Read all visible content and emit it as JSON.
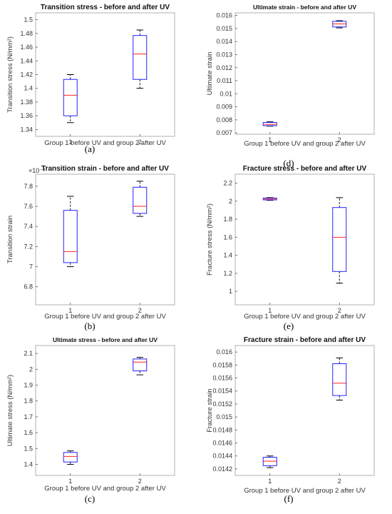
{
  "colors": {
    "box": "#2222ff",
    "median": "#ff2222",
    "whisker": "#000000",
    "axes": "#b0b0b0"
  },
  "chart_data": [
    {
      "type": "boxplot",
      "panel": "(a)",
      "title": "Transition stress - before and after UV",
      "xlabel": "Group 1 before UV and group 2 after UV",
      "ylabel": "Transition stress (N/mm²)",
      "ylim": [
        1.33,
        1.51
      ],
      "yticks": [
        1.34,
        1.36,
        1.38,
        1.4,
        1.42,
        1.44,
        1.46,
        1.48,
        1.5
      ],
      "ytick_labels": [
        "1.34",
        "1.36",
        "1.38",
        "1.4",
        "1.42",
        "1.44",
        "1.46",
        "1.48",
        "1.5"
      ],
      "exponent": "",
      "categories": [
        "1",
        "2"
      ],
      "boxes": [
        {
          "min": 1.35,
          "q1": 1.36,
          "median": 1.39,
          "q3": 1.413,
          "max": 1.42
        },
        {
          "min": 1.4,
          "q1": 1.413,
          "median": 1.45,
          "q3": 1.477,
          "max": 1.485
        }
      ]
    },
    {
      "type": "boxplot",
      "panel": "(d)",
      "title": "Ultimate strain - before and after UV",
      "xlabel": "Group 1 before UV and group 2 after UV",
      "ylabel": "Ultimate strain",
      "ylim": [
        0.0069,
        0.0162
      ],
      "yticks": [
        0.007,
        0.008,
        0.009,
        0.01,
        0.011,
        0.012,
        0.013,
        0.014,
        0.015,
        0.016
      ],
      "ytick_labels": [
        "0.007",
        "0.008",
        "0.009",
        "0.01",
        "0.011",
        "0.012",
        "0.013",
        "0.014",
        "0.015",
        "0.016"
      ],
      "exponent": "",
      "categories": [
        "1",
        "2"
      ],
      "boxes": [
        {
          "min": 0.00752,
          "q1": 0.00755,
          "median": 0.00765,
          "q3": 0.0078,
          "max": 0.00785
        },
        {
          "min": 0.01505,
          "q1": 0.01512,
          "median": 0.01535,
          "q3": 0.01555,
          "max": 0.0156
        }
      ]
    },
    {
      "type": "boxplot",
      "panel": "(b)",
      "title": "Transition strain - before and after UV",
      "xlabel": "Group 1 before UV and group 2 after UV",
      "ylabel": "Transition strain",
      "ylim": [
        6.62,
        7.92
      ],
      "yticks": [
        6.8,
        7.0,
        7.2,
        7.4,
        7.6,
        7.8
      ],
      "ytick_labels": [
        "6.8",
        "7",
        "7.2",
        "7.4",
        "7.6",
        "7.8"
      ],
      "exponent": "×10⁻³",
      "categories": [
        "1",
        "2"
      ],
      "boxes": [
        {
          "min": 7.0,
          "q1": 7.04,
          "median": 7.15,
          "q3": 7.56,
          "max": 7.7
        },
        {
          "min": 7.5,
          "q1": 7.53,
          "median": 7.6,
          "q3": 7.79,
          "max": 7.85
        }
      ]
    },
    {
      "type": "boxplot",
      "panel": "(e)",
      "title": "Fracture stress - before and after UV",
      "xlabel": "Group 1 before UV and group 2 after UV",
      "ylabel": "Fracture stress (N/mm²)",
      "ylim": [
        0.85,
        2.3
      ],
      "yticks": [
        1.0,
        1.2,
        1.4,
        1.6,
        1.8,
        2.0,
        2.2
      ],
      "ytick_labels": [
        "1",
        "1.2",
        "1.4",
        "1.6",
        "1.8",
        "2",
        "2.2"
      ],
      "exponent": "",
      "categories": [
        "1",
        "2"
      ],
      "boxes": [
        {
          "min": 2.01,
          "q1": 2.015,
          "median": 2.025,
          "q3": 2.035,
          "max": 2.04
        },
        {
          "min": 1.09,
          "q1": 1.22,
          "median": 1.6,
          "q3": 1.93,
          "max": 2.04
        }
      ]
    },
    {
      "type": "boxplot",
      "panel": "(c)",
      "title": "Ultimate stress - before and after UV",
      "xlabel": "Group 1 before UV and group 2 after UV",
      "ylabel": "Ultimate stress (N/mm²)",
      "ylim": [
        1.33,
        2.15
      ],
      "yticks": [
        1.4,
        1.5,
        1.6,
        1.7,
        1.8,
        1.9,
        2.0,
        2.1
      ],
      "ytick_labels": [
        "1.4",
        "1.5",
        "1.6",
        "1.7",
        "1.8",
        "1.9",
        "2",
        "2.1"
      ],
      "exponent": "",
      "categories": [
        "1",
        "2"
      ],
      "boxes": [
        {
          "min": 1.4,
          "q1": 1.415,
          "median": 1.45,
          "q3": 1.475,
          "max": 1.485
        },
        {
          "min": 1.965,
          "q1": 1.99,
          "median": 2.045,
          "q3": 2.065,
          "max": 2.075
        }
      ]
    },
    {
      "type": "boxplot",
      "panel": "(f)",
      "title": "Fracture strain - before and after UV",
      "xlabel": "Group 1 before UV and group 2 after UV",
      "ylabel": "Fracture strain",
      "ylim": [
        0.0141,
        0.0161
      ],
      "yticks": [
        0.0142,
        0.0144,
        0.0146,
        0.0148,
        0.015,
        0.0152,
        0.0154,
        0.0156,
        0.0158,
        0.016
      ],
      "ytick_labels": [
        "0.0142",
        "0.0144",
        "0.0146",
        "0.0148",
        "0.015",
        "0.0152",
        "0.0154",
        "0.0156",
        "0.0158",
        "0.016"
      ],
      "exponent": "",
      "categories": [
        "1",
        "2"
      ],
      "boxes": [
        {
          "min": 0.01422,
          "q1": 0.01425,
          "median": 0.01432,
          "q3": 0.01438,
          "max": 0.0144
        },
        {
          "min": 0.01526,
          "q1": 0.01533,
          "median": 0.01552,
          "q3": 0.01582,
          "max": 0.01591
        }
      ]
    }
  ]
}
